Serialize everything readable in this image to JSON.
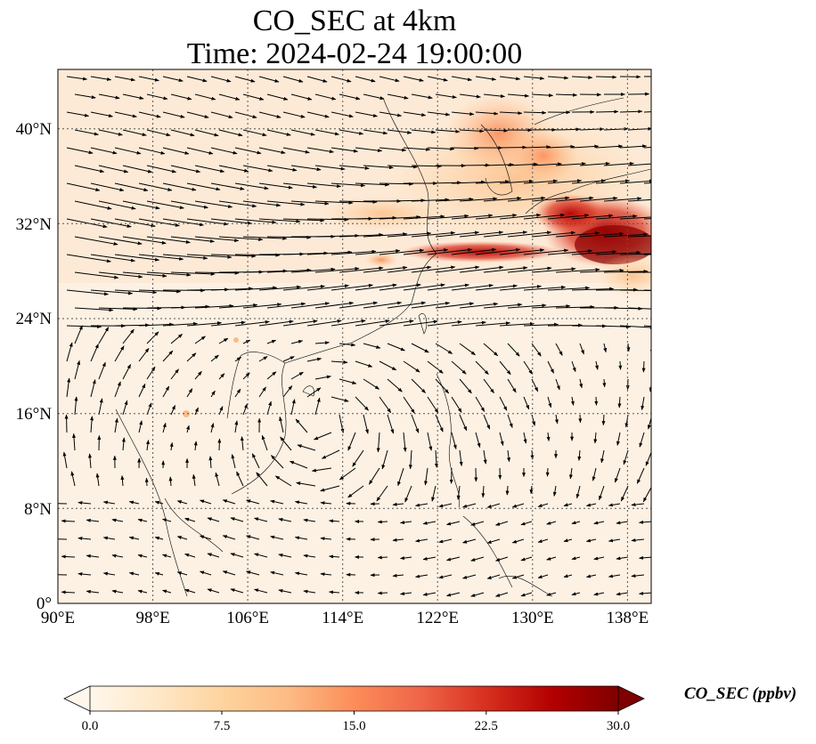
{
  "title_line1": "CO_SEC at 4km",
  "title_line2": "Time: 2024-02-24 19:00:00",
  "map": {
    "lon_range": [
      90,
      140
    ],
    "lat_range": [
      0,
      45
    ],
    "lon_ticks": [
      "90°E",
      "98°E",
      "106°E",
      "114°E",
      "122°E",
      "130°E",
      "138°E"
    ],
    "lat_ticks": [
      "0°",
      "8°N",
      "16°N",
      "24°N",
      "32°N",
      "40°N"
    ],
    "gridlines": "dotted"
  },
  "colorbar": {
    "label": "CO_SEC (ppbv)",
    "cmap": "OrRd",
    "ticks": [
      "0.0",
      "7.5",
      "15.0",
      "22.5",
      "30.0"
    ],
    "range": [
      0,
      30
    ],
    "extend": "both",
    "colors": [
      "#fff7ec",
      "#fee8c8",
      "#fdd49e",
      "#fdbb84",
      "#fc8d59",
      "#ef6548",
      "#d7301f",
      "#b30000",
      "#7f0000"
    ]
  }
}
